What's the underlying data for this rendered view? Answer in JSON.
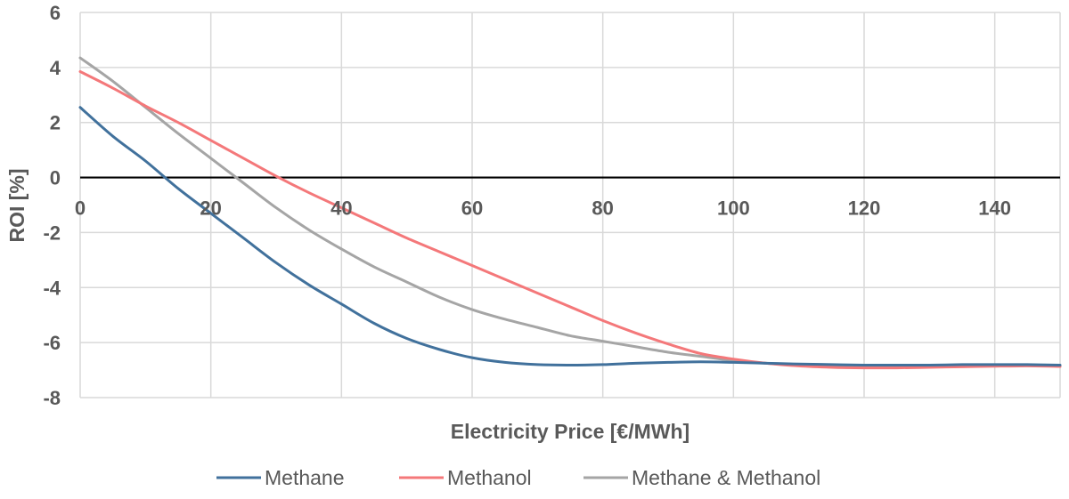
{
  "chart_data": {
    "type": "line",
    "xlabel": "Electricity Price [€/MWh]",
    "ylabel": "ROI [%]",
    "xlim": [
      0,
      150
    ],
    "ylim": [
      -8,
      6
    ],
    "x_ticks": [
      0,
      20,
      40,
      60,
      80,
      100,
      120,
      140
    ],
    "y_ticks": [
      6,
      4,
      2,
      0,
      -2,
      -4,
      -6,
      -8
    ],
    "grid": true,
    "legend_position": "bottom",
    "series": [
      {
        "name": "Methane",
        "color": "#41719C",
        "x": [
          0,
          5,
          10,
          15,
          20,
          25,
          30,
          35,
          40,
          45,
          50,
          55,
          60,
          65,
          70,
          75,
          80,
          85,
          90,
          95,
          100,
          105,
          110,
          115,
          120,
          125,
          130,
          135,
          140,
          145,
          150
        ],
        "y": [
          2.55,
          1.5,
          0.6,
          -0.4,
          -1.3,
          -2.2,
          -3.1,
          -3.9,
          -4.6,
          -5.3,
          -5.85,
          -6.25,
          -6.55,
          -6.72,
          -6.8,
          -6.82,
          -6.8,
          -6.75,
          -6.72,
          -6.7,
          -6.72,
          -6.75,
          -6.78,
          -6.8,
          -6.82,
          -6.82,
          -6.82,
          -6.8,
          -6.8,
          -6.8,
          -6.82
        ]
      },
      {
        "name": "Methanol",
        "color": "#F4787A",
        "x": [
          0,
          5,
          10,
          15,
          20,
          25,
          30,
          35,
          40,
          45,
          50,
          55,
          60,
          65,
          70,
          75,
          80,
          85,
          90,
          95,
          100,
          105,
          110,
          115,
          120,
          125,
          130,
          135,
          140,
          145,
          150
        ],
        "y": [
          3.85,
          3.25,
          2.6,
          2.0,
          1.35,
          0.7,
          0.05,
          -0.55,
          -1.1,
          -1.65,
          -2.2,
          -2.7,
          -3.2,
          -3.7,
          -4.2,
          -4.7,
          -5.2,
          -5.65,
          -6.05,
          -6.4,
          -6.6,
          -6.75,
          -6.85,
          -6.9,
          -6.92,
          -6.92,
          -6.9,
          -6.88,
          -6.86,
          -6.85,
          -6.87
        ]
      },
      {
        "name": "Methane & Methanol",
        "color": "#A5A5A5",
        "x": [
          0,
          5,
          10,
          15,
          20,
          25,
          30,
          35,
          40,
          45,
          50,
          55,
          60,
          65,
          70,
          75,
          80,
          85,
          90,
          95,
          100,
          105,
          110,
          115,
          120,
          125,
          130,
          135,
          140,
          145,
          150
        ],
        "y": [
          4.35,
          3.5,
          2.55,
          1.6,
          0.7,
          -0.2,
          -1.1,
          -1.9,
          -2.6,
          -3.25,
          -3.8,
          -4.35,
          -4.8,
          -5.15,
          -5.45,
          -5.75,
          -5.95,
          -6.15,
          -6.35,
          -6.5,
          -6.65,
          -6.75,
          -6.82,
          -6.85,
          -6.87,
          -6.88,
          -6.87,
          -6.86,
          -6.85,
          -6.84,
          -6.85
        ]
      }
    ]
  }
}
